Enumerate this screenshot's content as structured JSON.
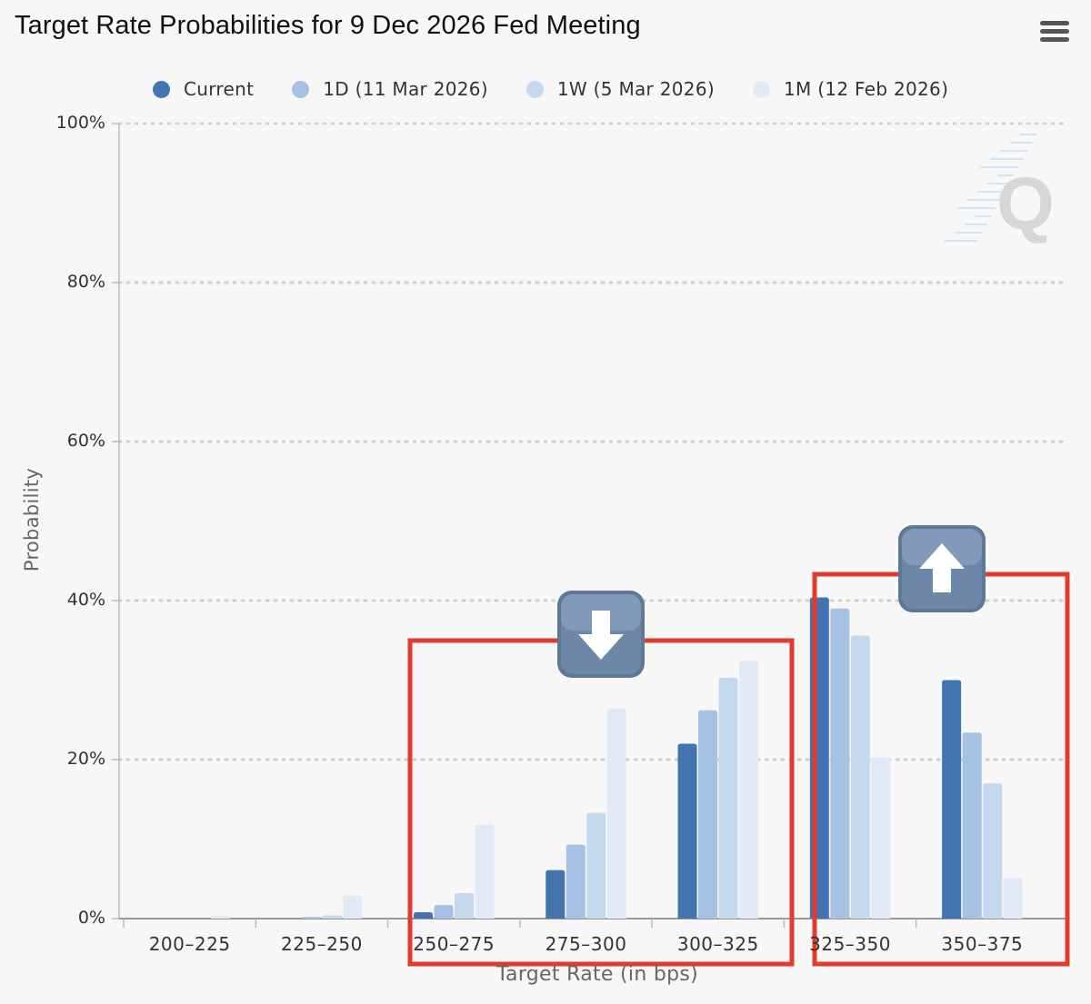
{
  "header": {
    "title": "Target Rate Probabilities for 9 Dec 2026 Fed Meeting"
  },
  "colors": {
    "series": [
      "#4374b0",
      "#a5c2e4",
      "#c4d8ee",
      "#e1eaf5"
    ],
    "annotation": "#e23b2e",
    "grid": "#cfcfcf",
    "axis": "#bbbbbb",
    "arrow_button": "#6d87a8"
  },
  "icons": {
    "menu": "hamburger-menu-icon",
    "watermark": "quikstrike-q-logo",
    "down": "down-arrow-emoji-icon",
    "up": "up-arrow-emoji-icon"
  },
  "chart_data": {
    "type": "bar",
    "title": "Target Rate Probabilities for 9 Dec 2026 Fed Meeting",
    "xlabel": "Target Rate (in bps)",
    "ylabel": "Probability",
    "ylim": [
      0,
      100
    ],
    "yticks": [
      "0%",
      "20%",
      "40%",
      "60%",
      "80%",
      "100%"
    ],
    "grid": true,
    "legend_position": "top",
    "categories": [
      "200–225",
      "225–250",
      "250–275",
      "275–300",
      "300–325",
      "325–350",
      "350–375"
    ],
    "series": [
      {
        "name": "Current",
        "values": [
          0,
          0,
          0.8,
          6.1,
          22.0,
          40.4,
          30.0
        ]
      },
      {
        "name": "1D (11 Mar 2026)",
        "values": [
          0,
          0.2,
          1.7,
          9.3,
          26.2,
          39.0,
          23.4
        ]
      },
      {
        "name": "1W (5 Mar 2026)",
        "values": [
          0,
          0.4,
          3.2,
          13.3,
          30.3,
          35.6,
          17.0
        ]
      },
      {
        "name": "1M (12 Feb 2026)",
        "values": [
          0.3,
          2.9,
          11.8,
          26.4,
          32.4,
          20.3,
          5.1
        ]
      }
    ],
    "annotations": [
      {
        "categories": [
          "250–275",
          "275–300",
          "300–325"
        ],
        "direction": "down"
      },
      {
        "categories": [
          "325–350",
          "350–375"
        ],
        "direction": "up"
      }
    ]
  }
}
